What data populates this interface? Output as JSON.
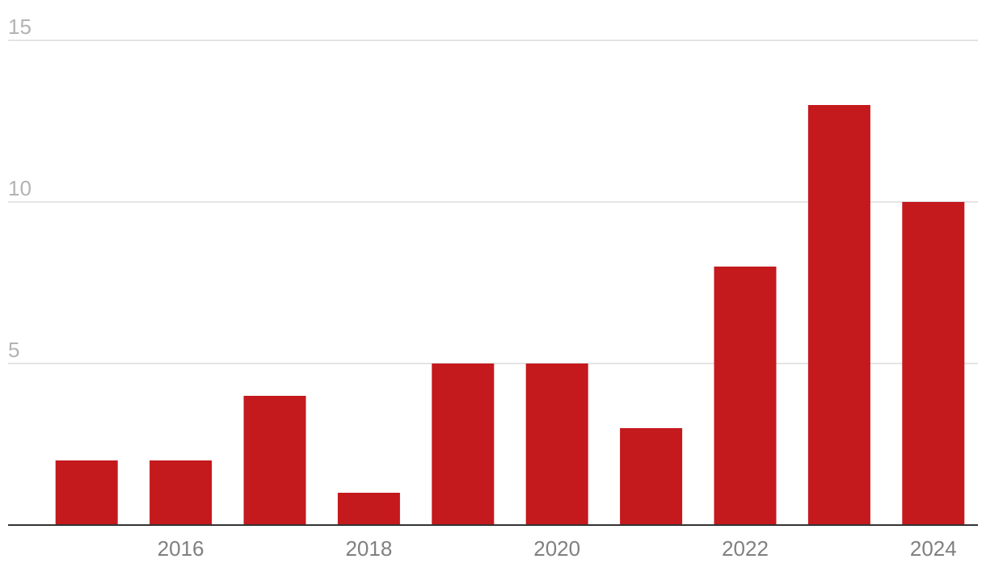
{
  "chart_data": {
    "type": "bar",
    "categories": [
      "2015",
      "2016",
      "2017",
      "2018",
      "2019",
      "2020",
      "2021",
      "2022",
      "2023",
      "2024"
    ],
    "values": [
      2,
      2,
      4,
      1,
      5,
      5,
      3,
      8,
      13,
      10
    ],
    "x_tick_labels": [
      "2016",
      "2018",
      "2020",
      "2022",
      "2024"
    ],
    "y_tick_labels": [
      "5",
      "10",
      "15"
    ],
    "ylim": [
      0,
      15
    ],
    "grid": true,
    "bar_color": "#c4191d",
    "title": "",
    "xlabel": "",
    "ylabel": ""
  }
}
